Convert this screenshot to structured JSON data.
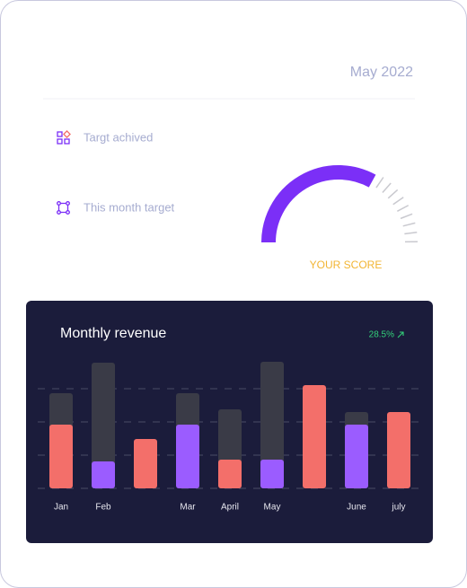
{
  "header": {
    "date": "May 2022"
  },
  "legend": [
    "Targt achived",
    "This month target"
  ],
  "gauge": {
    "label": "YOUR SCORE",
    "value": 66,
    "range": [
      0,
      100
    ],
    "color": "#7b2ff7"
  },
  "chart_data": {
    "type": "bar",
    "title": "Monthly revenue",
    "change": "28.5%",
    "categories": [
      "Jan",
      "Feb",
      null,
      "Mar",
      "April",
      "May",
      null,
      "June",
      "july"
    ],
    "series": [
      {
        "color": "#3a3b47",
        "values": [
          106,
          140,
          null,
          106,
          88,
          141,
          null,
          85,
          null
        ]
      },
      {
        "colors": [
          "#f36f6a",
          "#9b5cff",
          "#f36f6a",
          "#9b5cff",
          "#f36f6a",
          "#9b5cff",
          "#f36f6a",
          "#9b5cff",
          "#f36f6a"
        ],
        "values": [
          71,
          30,
          55,
          71,
          32,
          32,
          115,
          71,
          85
        ]
      }
    ],
    "ylim": [
      0,
      150
    ],
    "yticks": [
      0,
      37,
      74,
      111
    ],
    "grid": true
  }
}
